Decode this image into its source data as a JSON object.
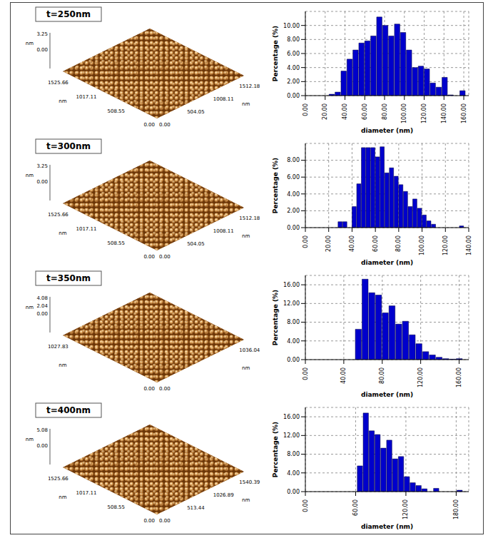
{
  "afm_images": [
    {
      "label": "t=250nm",
      "z_ticks": [
        "3.25",
        "0.00"
      ],
      "z_unit": "nm",
      "x_ticks": [
        "1525.66",
        "1017.11",
        "508.55",
        "0.00"
      ],
      "x_unit": "nm",
      "y_ticks": [
        "1512.18",
        "1008.11",
        "504.05",
        "0.00"
      ],
      "y_unit": "nm"
    },
    {
      "label": "t=300nm",
      "z_ticks": [
        "3.25",
        "0.00"
      ],
      "z_unit": "nm",
      "x_ticks": [
        "1525.66",
        "1017.11",
        "508.55",
        "0.00"
      ],
      "x_unit": "nm",
      "y_ticks": [
        "1512.18",
        "1008.11",
        "504.05",
        "0.00"
      ],
      "y_unit": "nm"
    },
    {
      "label": "t=350nm",
      "z_ticks": [
        "4.08",
        "2.04",
        "0.00"
      ],
      "z_unit": "nm",
      "x_ticks": [
        "1027.83",
        "0.00"
      ],
      "x_unit": "nm",
      "y_ticks": [
        "1036.04",
        "0.00"
      ],
      "y_unit": "nm"
    },
    {
      "label": "t=400nm",
      "z_ticks": [
        "5.08",
        "0.00"
      ],
      "z_unit": "nm",
      "x_ticks": [
        "1525.66",
        "1017.11",
        "508.55",
        "0.00"
      ],
      "x_unit": "nm",
      "y_ticks": [
        "1540.39",
        "1026.89",
        "513.44",
        "0.00"
      ],
      "y_unit": "nm"
    }
  ],
  "chart_data": [
    {
      "type": "histogram",
      "xlabel": "diameter (nm)",
      "ylabel": "Percentage (%)",
      "color": "#0000cc",
      "grid": true,
      "bins": [
        24,
        30,
        36,
        42,
        48,
        54,
        60,
        66,
        72,
        78,
        84,
        90,
        96,
        102,
        108,
        114,
        120,
        126,
        132,
        138,
        144,
        150,
        156,
        162
      ],
      "values": [
        0.2,
        0.5,
        3.5,
        5.2,
        6.5,
        7.5,
        7.8,
        8.5,
        11.2,
        10.0,
        8.5,
        10.2,
        9.0,
        6.5,
        4.0,
        4.2,
        3.8,
        1.8,
        1.2,
        2.6,
        0.1,
        0,
        0.7
      ],
      "xlim": [
        0,
        165
      ],
      "xticks": [
        {
          "value": 0,
          "label": "0.00"
        },
        {
          "value": 20,
          "label": "20.00"
        },
        {
          "value": 40,
          "label": "40.00"
        },
        {
          "value": 60,
          "label": "60.00"
        },
        {
          "value": 80,
          "label": "80.00"
        },
        {
          "value": 100,
          "label": "100.00"
        },
        {
          "value": 120,
          "label": "120.00"
        },
        {
          "value": 140,
          "label": "140.00"
        },
        {
          "value": 160,
          "label": "160.00"
        }
      ],
      "ylim": [
        0,
        12
      ],
      "yticks": [
        {
          "value": 0,
          "label": "0.00"
        },
        {
          "value": 2,
          "label": "2.00"
        },
        {
          "value": 4,
          "label": "4.00"
        },
        {
          "value": 6,
          "label": "6.00"
        },
        {
          "value": 8,
          "label": "8.00"
        },
        {
          "value": 10,
          "label": "10.00"
        }
      ]
    },
    {
      "type": "histogram",
      "xlabel": "diameter (nm)",
      "ylabel": "Percentage (%)",
      "color": "#0000cc",
      "grid": true,
      "bins": [
        28,
        32,
        36,
        40,
        44,
        48,
        52,
        56,
        60,
        64,
        68,
        72,
        76,
        80,
        84,
        88,
        92,
        96,
        100,
        104,
        108,
        112,
        116,
        120,
        124,
        128,
        132,
        136
      ],
      "values": [
        0.7,
        0.7,
        0,
        2.5,
        5.2,
        9.5,
        9.5,
        9.5,
        8.4,
        9.6,
        6.5,
        7.1,
        6.1,
        5.1,
        4.3,
        2.5,
        3.4,
        2.3,
        1.5,
        0.8,
        0.4,
        0,
        0,
        0,
        0,
        0,
        0.2
      ],
      "xlim": [
        0,
        140
      ],
      "xticks": [
        {
          "value": 0,
          "label": "0.00"
        },
        {
          "value": 20,
          "label": "20.00"
        },
        {
          "value": 40,
          "label": "40.00"
        },
        {
          "value": 60,
          "label": "60.00"
        },
        {
          "value": 80,
          "label": "80.00"
        },
        {
          "value": 100,
          "label": "100.00"
        },
        {
          "value": 120,
          "label": "120.00"
        },
        {
          "value": 140,
          "label": "140.00"
        }
      ],
      "ylim": [
        0,
        10
      ],
      "yticks": [
        {
          "value": 0,
          "label": "0.00"
        },
        {
          "value": 2,
          "label": "2.00"
        },
        {
          "value": 4,
          "label": "4.00"
        },
        {
          "value": 6,
          "label": "6.00"
        },
        {
          "value": 8,
          "label": "8.00"
        }
      ]
    },
    {
      "type": "histogram",
      "xlabel": "diameter (nm)",
      "ylabel": "Percentage (%)",
      "color": "#0000cc",
      "grid": true,
      "bins": [
        52,
        59,
        66,
        73,
        80,
        87,
        94,
        101,
        108,
        115,
        122,
        129,
        136,
        143,
        150,
        157,
        164
      ],
      "values": [
        6.5,
        17.2,
        14.3,
        13.8,
        10.0,
        11.5,
        7.6,
        8.2,
        5.3,
        3.4,
        1.7,
        1.0,
        0.5,
        0.2,
        0.1,
        0.2
      ],
      "xlim": [
        0,
        170
      ],
      "xticks": [
        {
          "value": 0,
          "label": "0.00"
        },
        {
          "value": 40,
          "label": "40.00"
        },
        {
          "value": 80,
          "label": "80.00"
        },
        {
          "value": 120,
          "label": "120.00"
        },
        {
          "value": 160,
          "label": "160.00"
        }
      ],
      "ylim": [
        0,
        18
      ],
      "yticks": [
        {
          "value": 0,
          "label": "0.00"
        },
        {
          "value": 4,
          "label": "4.00"
        },
        {
          "value": 8,
          "label": "8.00"
        },
        {
          "value": 12,
          "label": "12.00"
        },
        {
          "value": 16,
          "label": "16.00"
        }
      ]
    },
    {
      "type": "histogram",
      "xlabel": "diameter (nm)",
      "ylabel": "Percentage (%)",
      "color": "#0000cc",
      "grid": true,
      "bins": [
        62,
        69,
        76,
        83,
        90,
        97,
        104,
        111,
        118,
        125,
        132,
        139,
        146,
        153,
        160,
        167,
        174,
        181,
        188
      ],
      "values": [
        5.5,
        16.8,
        13.0,
        12.2,
        9.3,
        11.0,
        7.0,
        7.5,
        3.2,
        1.9,
        1.3,
        0.6,
        0,
        0.7,
        0,
        0,
        0,
        0.3
      ],
      "xlim": [
        0,
        195
      ],
      "xticks": [
        {
          "value": 0,
          "label": "0.00"
        },
        {
          "value": 60,
          "label": "60.00"
        },
        {
          "value": 120,
          "label": "120.00"
        },
        {
          "value": 180,
          "label": "180.00"
        }
      ],
      "ylim": [
        0,
        18
      ],
      "yticks": [
        {
          "value": 0,
          "label": "0.00"
        },
        {
          "value": 4,
          "label": "4.00"
        },
        {
          "value": 8,
          "label": "8.00"
        },
        {
          "value": 12,
          "label": "12.00"
        },
        {
          "value": 16,
          "label": "16.00"
        }
      ]
    }
  ]
}
